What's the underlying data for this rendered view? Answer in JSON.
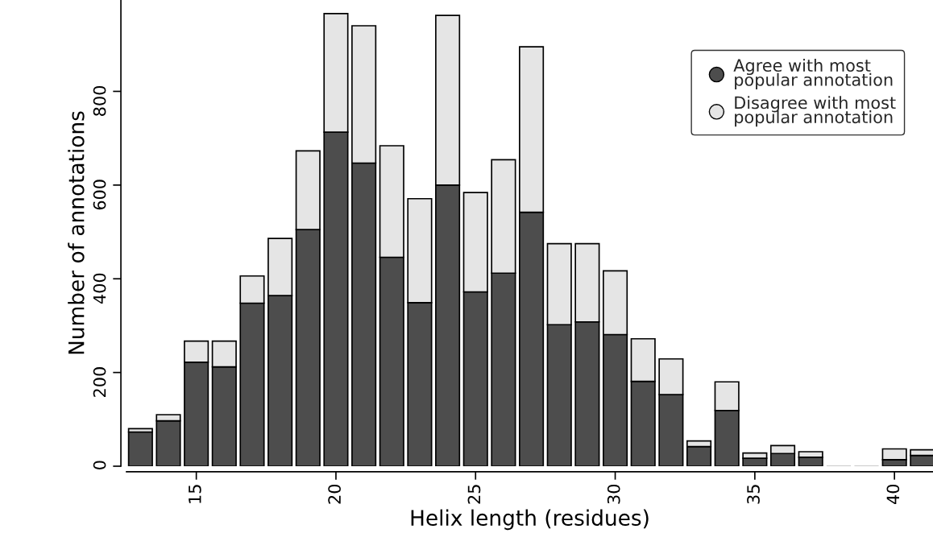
{
  "chart_data": {
    "type": "bar",
    "stacked": true,
    "xlabel": "Helix length (residues)",
    "ylabel": "Number of annotations",
    "x": [
      13,
      14,
      15,
      16,
      17,
      18,
      19,
      20,
      21,
      22,
      23,
      24,
      25,
      26,
      27,
      28,
      29,
      30,
      31,
      32,
      33,
      34,
      35,
      36,
      37,
      38,
      39,
      40,
      41
    ],
    "series": [
      {
        "name": "Agree with most\npopular annotation",
        "color": "#4d4d4d",
        "values": [
          73,
          97,
          222,
          212,
          348,
          364,
          505,
          713,
          647,
          446,
          349,
          600,
          372,
          412,
          542,
          302,
          308,
          281,
          181,
          153,
          42,
          119,
          17,
          27,
          19,
          0,
          0,
          14,
          23
        ]
      },
      {
        "name": "Disagree with most\npopular annotation",
        "color": "#e5e5e5",
        "values": [
          7,
          13,
          45,
          55,
          58,
          122,
          168,
          253,
          293,
          238,
          222,
          362,
          212,
          242,
          353,
          173,
          167,
          136,
          91,
          76,
          12,
          61,
          11,
          17,
          12,
          0,
          0,
          23,
          12
        ]
      }
    ],
    "xlim": [
      12.5,
      41.38
    ],
    "xticks": [
      15,
      20,
      25,
      30,
      35,
      40
    ],
    "ylim": [
      0,
      995
    ],
    "yticks": [
      0,
      200,
      400,
      600,
      800
    ],
    "grid": false,
    "legend": "top right",
    "marker": "circle"
  }
}
